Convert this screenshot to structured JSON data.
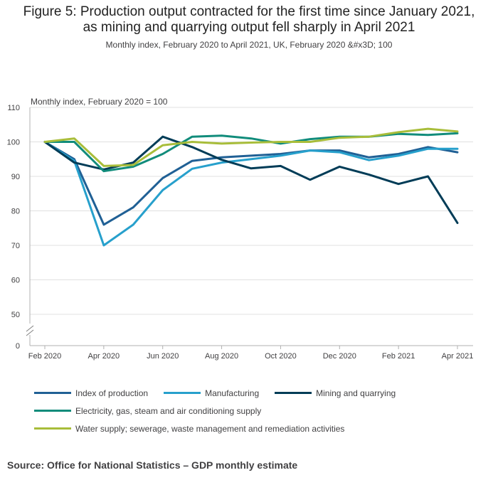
{
  "title_line1": "Figure 5: Production output contracted for the first time since January 2021,",
  "title_line2": "as mining and quarrying output fell sharply in April 2021",
  "subtitle": "Monthly index, February 2020 to April 2021, UK, February 2020 &#x3D; 100",
  "source": "Source: Office for National Statistics – GDP monthly estimate",
  "chart_data": {
    "type": "line",
    "ylabel": "Monthly index, February 2020 = 100",
    "xlabel": "",
    "ylim": [
      0,
      110
    ],
    "axis_break": true,
    "grid": true,
    "legend_position": "bottom",
    "y_ticks": [
      0,
      50,
      60,
      70,
      80,
      90,
      100,
      110
    ],
    "x": [
      "Feb 2020",
      "Mar 2020",
      "Apr 2020",
      "May 2020",
      "Jun 2020",
      "Jul 2020",
      "Aug 2020",
      "Sep 2020",
      "Oct 2020",
      "Nov 2020",
      "Dec 2020",
      "Jan 2021",
      "Feb 2021",
      "Mar 2021",
      "Apr 2021"
    ],
    "x_tick_labels": [
      "Feb 2020",
      "",
      "Apr 2020",
      "",
      "Jun 2020",
      "",
      "Aug 2020",
      "",
      "Oct 2020",
      "",
      "Dec 2020",
      "",
      "Feb 2021",
      "",
      "Apr 2021"
    ],
    "series": [
      {
        "name": "Index of production",
        "color": "#206095",
        "values": [
          100,
          95,
          76,
          81,
          89.5,
          94.5,
          95.5,
          96,
          96.5,
          97.5,
          97.5,
          95.5,
          96.5,
          98.5,
          97
        ]
      },
      {
        "name": "Manufacturing",
        "color": "#27a0cc",
        "values": [
          100,
          94.5,
          70,
          76,
          86,
          92.2,
          94,
          95,
          96,
          97.5,
          97,
          94.7,
          96,
          98,
          98
        ]
      },
      {
        "name": "Mining and quarrying",
        "color": "#003c57",
        "values": [
          100,
          94,
          92,
          94,
          101.5,
          98.5,
          94.8,
          92.3,
          93,
          89,
          92.8,
          90.5,
          87.8,
          90,
          76.5
        ]
      },
      {
        "name": "Electricity, gas, steam and air conditioning supply",
        "color": "#118c7b",
        "values": [
          100,
          100,
          91.5,
          92.8,
          96.5,
          101.5,
          101.8,
          101,
          99.5,
          100.8,
          101.5,
          101.5,
          102.3,
          102,
          102.5
        ]
      },
      {
        "name": "Water supply; sewerage, waste management and remediation activities",
        "color": "#a8bd3a",
        "values": [
          100,
          101,
          93,
          93.3,
          99,
          100,
          99.5,
          99.8,
          100,
          100,
          101.2,
          101.5,
          102.8,
          103.8,
          103
        ]
      }
    ]
  }
}
